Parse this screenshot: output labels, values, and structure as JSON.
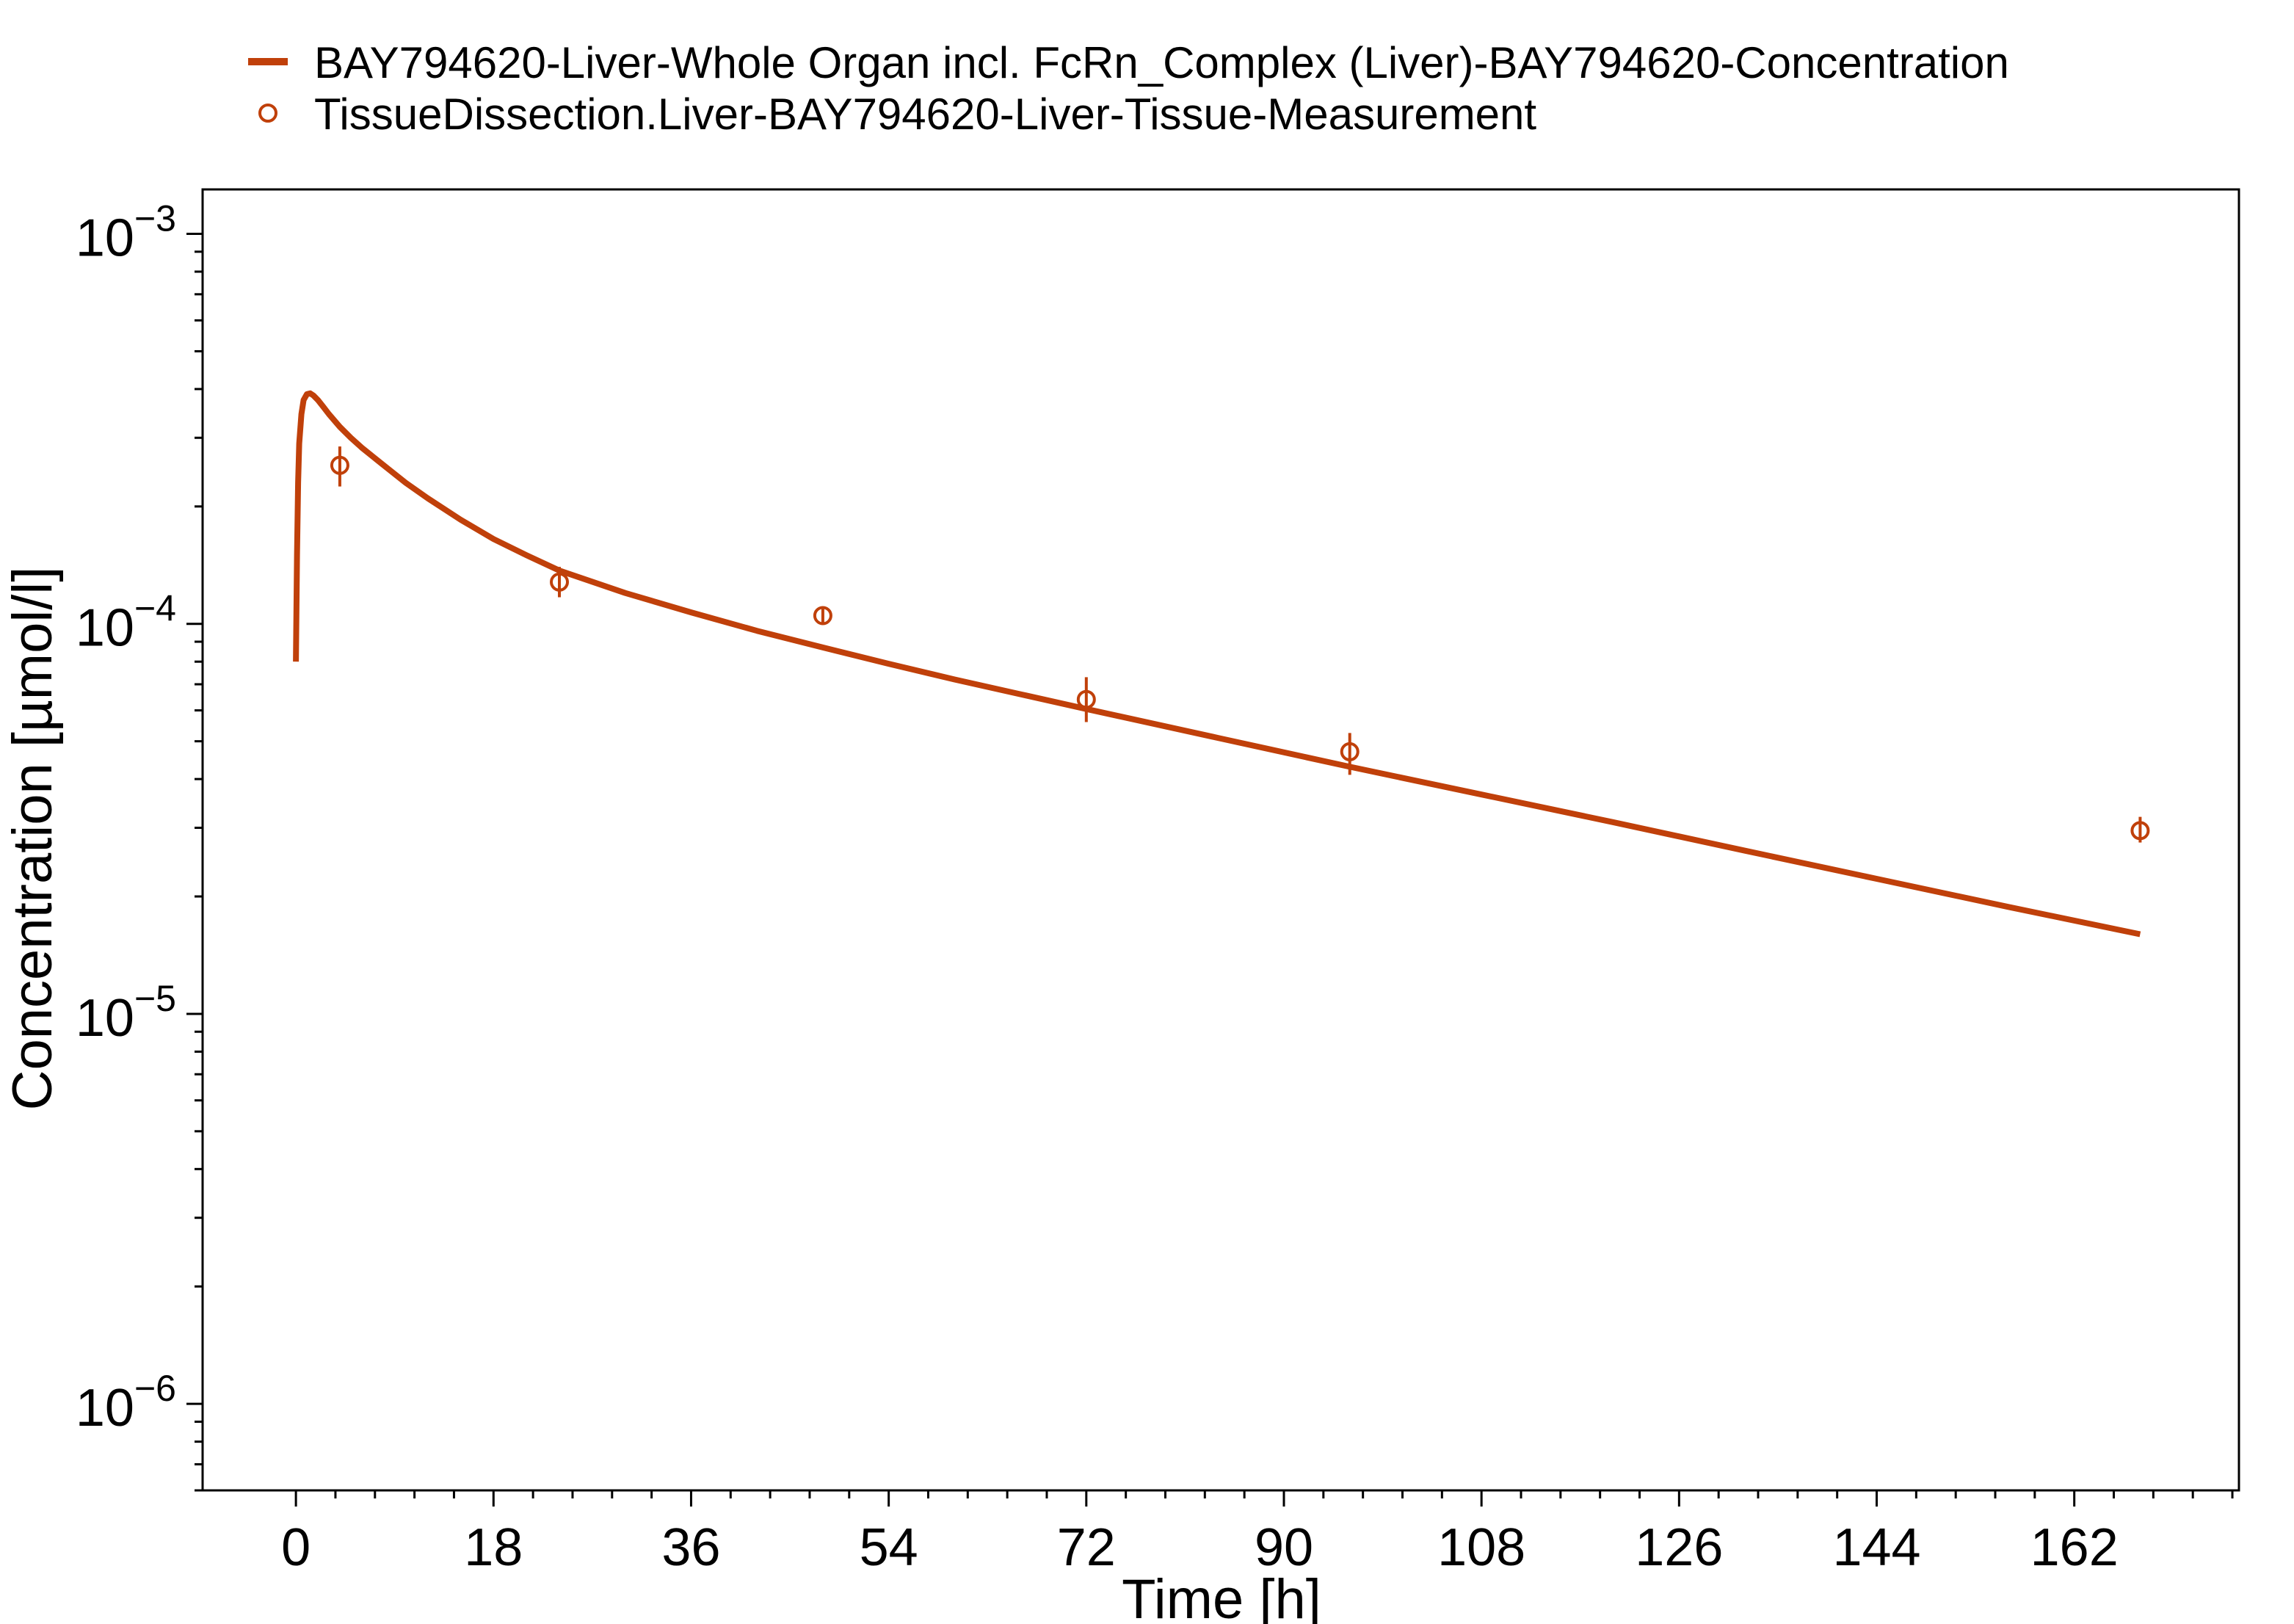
{
  "chart_data": {
    "type": "line",
    "xlabel": "Time [h]",
    "ylabel": "Concentration [µmol/l]",
    "xlim": [
      -8.5,
      177
    ],
    "ylim": [
      6e-07,
      0.0013
    ],
    "yscale": "log",
    "grid": false,
    "legend_position": "top",
    "x_ticks": [
      {
        "value": 0,
        "label": "0"
      },
      {
        "value": 18,
        "label": "18"
      },
      {
        "value": 36,
        "label": "36"
      },
      {
        "value": 54,
        "label": "54"
      },
      {
        "value": 72,
        "label": "72"
      },
      {
        "value": 90,
        "label": "90"
      },
      {
        "value": 108,
        "label": "108"
      },
      {
        "value": 126,
        "label": "126"
      },
      {
        "value": 144,
        "label": "144"
      },
      {
        "value": 162,
        "label": "162"
      }
    ],
    "y_ticks": [
      {
        "value": 0.001,
        "base": "10",
        "exponent": "−3"
      },
      {
        "value": 0.0001,
        "base": "10",
        "exponent": "−4"
      },
      {
        "value": 1e-05,
        "base": "10",
        "exponent": "−5"
      },
      {
        "value": 1e-06,
        "base": "10",
        "exponent": "−6"
      }
    ],
    "series": [
      {
        "name": "BAY794620-Liver-Whole Organ incl. FcRn_Complex (Liver)-BAY794620-Concentration",
        "kind": "line",
        "color": "#C0400A",
        "x": [
          0,
          0.1,
          0.2,
          0.3,
          0.5,
          0.7,
          1.0,
          1.3,
          1.6,
          2.0,
          2.5,
          3,
          4,
          5,
          6,
          8,
          10,
          12,
          15,
          18,
          21,
          24,
          30,
          36,
          42,
          48,
          54,
          60,
          66,
          72,
          84,
          96,
          108,
          120,
          132,
          144,
          156,
          168
        ],
        "y": [
          8e-05,
          0.00015,
          0.00023,
          0.00029,
          0.000345,
          0.000375,
          0.000388,
          0.00039,
          0.000385,
          0.000375,
          0.00036,
          0.000345,
          0.00032,
          0.0003,
          0.000283,
          0.000255,
          0.00023,
          0.00021,
          0.000185,
          0.000165,
          0.00015,
          0.000137,
          0.00012,
          0.000107,
          9.6e-05,
          8.7e-05,
          7.9e-05,
          7.2e-05,
          6.6e-05,
          6.05e-05,
          5.1e-05,
          4.3e-05,
          3.65e-05,
          3.1e-05,
          2.62e-05,
          2.22e-05,
          1.88e-05,
          1.6e-05
        ]
      },
      {
        "name": "TissueDissection.Liver-BAY794620-Liver-Tissue-Measurement",
        "kind": "scatter",
        "color": "#C0400A",
        "x": [
          4,
          24,
          48,
          72,
          96,
          168
        ],
        "y": [
          0.000255,
          0.000128,
          0.000105,
          6.4e-05,
          4.7e-05,
          2.95e-05
        ],
        "y_err_low": [
          0.000225,
          0.000117,
          0.0001,
          5.6e-05,
          4.1e-05,
          2.75e-05
        ],
        "y_err_high": [
          0.000285,
          0.00014,
          0.00011,
          7.3e-05,
          5.25e-05,
          3.2e-05
        ]
      }
    ]
  }
}
